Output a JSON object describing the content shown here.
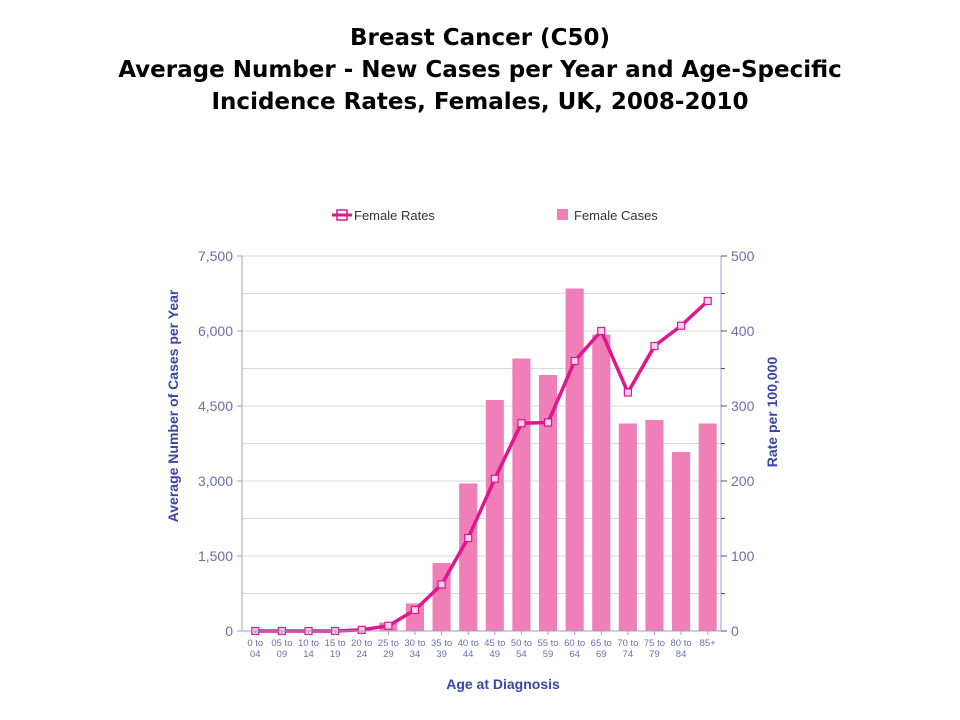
{
  "slide": {
    "title_lines": [
      "Breast Cancer (C50)",
      "Average Number - New Cases per Year and Age-Specific",
      "Incidence Rates, Females, UK, 2008-2010"
    ]
  },
  "colors": {
    "bar": "#f07fb8",
    "line": "#e0158f",
    "axis_label": "#3a45a8",
    "tick": "#6a6fa8",
    "grid": "#d9d9d9"
  },
  "chart_data": {
    "type": "bar",
    "xlabel": "Age at Diagnosis",
    "ylabel": "Average Number of Cases per Year",
    "ylabel_right": "Rate per 100,000",
    "ylim": [
      0,
      7500
    ],
    "ylim_right": [
      0,
      500
    ],
    "yticks": [
      "0",
      "1,500",
      "3,000",
      "4,500",
      "6,000",
      "7,500"
    ],
    "yticks_right": [
      "0",
      "100",
      "200",
      "300",
      "400",
      "500"
    ],
    "grid": true,
    "legend_position": "top",
    "categories": [
      [
        "0 to",
        "04"
      ],
      [
        "05 to",
        "09"
      ],
      [
        "10 to",
        "14"
      ],
      [
        "15 to",
        "19"
      ],
      [
        "20 to",
        "24"
      ],
      [
        "25 to",
        "29"
      ],
      [
        "30 to",
        "34"
      ],
      [
        "35 to",
        "39"
      ],
      [
        "40 to",
        "44"
      ],
      [
        "45 to",
        "49"
      ],
      [
        "50 to",
        "54"
      ],
      [
        "55 to",
        "59"
      ],
      [
        "60 to",
        "64"
      ],
      [
        "65 to",
        "69"
      ],
      [
        "70 to",
        "74"
      ],
      [
        "75 to",
        "79"
      ],
      [
        "80 to",
        "84"
      ],
      [
        "85+",
        ""
      ]
    ],
    "series": [
      {
        "name": "Female Cases",
        "kind": "bar",
        "axis": "left",
        "values": [
          0,
          0,
          0,
          0,
          20,
          170,
          550,
          1360,
          2950,
          4620,
          5450,
          5120,
          6850,
          5930,
          4150,
          4220,
          3580,
          4150
        ]
      },
      {
        "name": "Female Rates",
        "kind": "line",
        "axis": "right",
        "values": [
          0,
          0,
          0,
          0,
          1.5,
          7,
          28,
          62,
          124,
          203,
          277,
          278,
          360,
          400,
          318,
          380,
          407,
          440
        ]
      }
    ]
  }
}
